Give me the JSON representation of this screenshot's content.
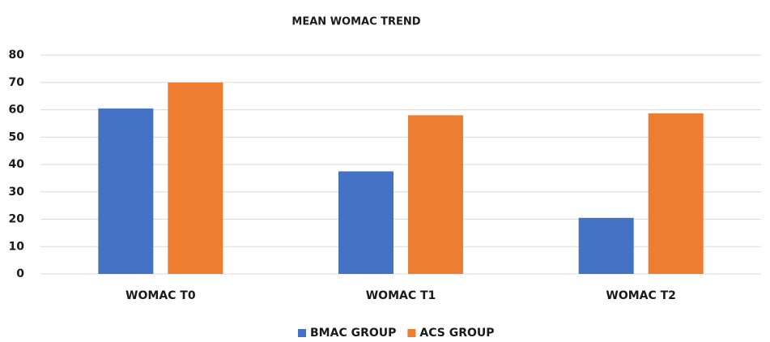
{
  "chart_data": {
    "type": "bar",
    "title": "MEAN WOMAC TREND",
    "categories": [
      "WOMAC T0",
      "WOMAC T1",
      "WOMAC T2"
    ],
    "series": [
      {
        "name": "BMAC GROUP",
        "color": "#4472c4",
        "values": [
          60.5,
          37.5,
          20.5
        ]
      },
      {
        "name": "ACS GROUP",
        "color": "#ed7d31",
        "values": [
          70,
          58,
          58.7
        ]
      }
    ],
    "ylim": [
      0,
      80
    ],
    "yticks": [
      0,
      10,
      20,
      30,
      40,
      50,
      60,
      70,
      80
    ],
    "grid": true,
    "legend": "bottom"
  }
}
